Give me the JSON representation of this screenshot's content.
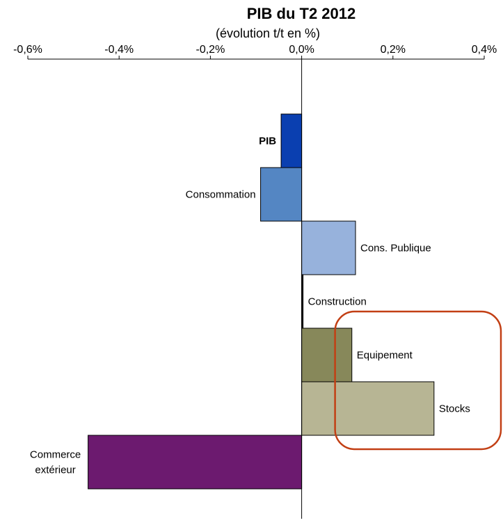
{
  "chart_data": {
    "type": "bar",
    "orientation": "horizontal",
    "title": "PIB du T2 2012",
    "subtitle": "(évolution t/t en %)",
    "xlabel": "",
    "ylabel": "",
    "xlim": [
      -0.6,
      0.4
    ],
    "tick_values": [
      -0.6,
      -0.4,
      -0.2,
      0.0,
      0.2,
      0.4
    ],
    "tick_labels": [
      "-0,6%",
      "-0,4%",
      "-0,2%",
      "0,0%",
      "0,2%",
      "0,4%"
    ],
    "grid": false,
    "legend": "none",
    "bars": [
      {
        "category": "PIB",
        "label_lines": [
          "PIB"
        ],
        "value": -0.045,
        "color": "#0a3fb0",
        "label_side": "left",
        "bold": true
      },
      {
        "category": "Consommation",
        "label_lines": [
          "Consommation"
        ],
        "value": -0.09,
        "color": "#5486c3",
        "label_side": "left",
        "bold": false
      },
      {
        "category": "Cons. Publique",
        "label_lines": [
          "Cons. Publique"
        ],
        "value": 0.118,
        "color": "#97b2dc",
        "label_side": "right",
        "bold": false
      },
      {
        "category": "Construction",
        "label_lines": [
          "Construction"
        ],
        "value": 0.003,
        "color": "#000000",
        "label_side": "right",
        "bold": false
      },
      {
        "category": "Equipement",
        "label_lines": [
          "Equipement"
        ],
        "value": 0.11,
        "color": "#87885a",
        "label_side": "right",
        "bold": false
      },
      {
        "category": "Stocks",
        "label_lines": [
          "Stocks"
        ],
        "value": 0.29,
        "color": "#b7b594",
        "label_side": "right",
        "bold": false
      },
      {
        "category": "Commerce extérieur",
        "label_lines": [
          "Commerce",
          "extérieur"
        ],
        "value": -0.468,
        "color": "#6c1a6f",
        "label_side": "left",
        "bold": false
      }
    ],
    "highlight": {
      "color": "#c23f14",
      "target_categories": [
        "Equipement",
        "Stocks"
      ]
    }
  }
}
